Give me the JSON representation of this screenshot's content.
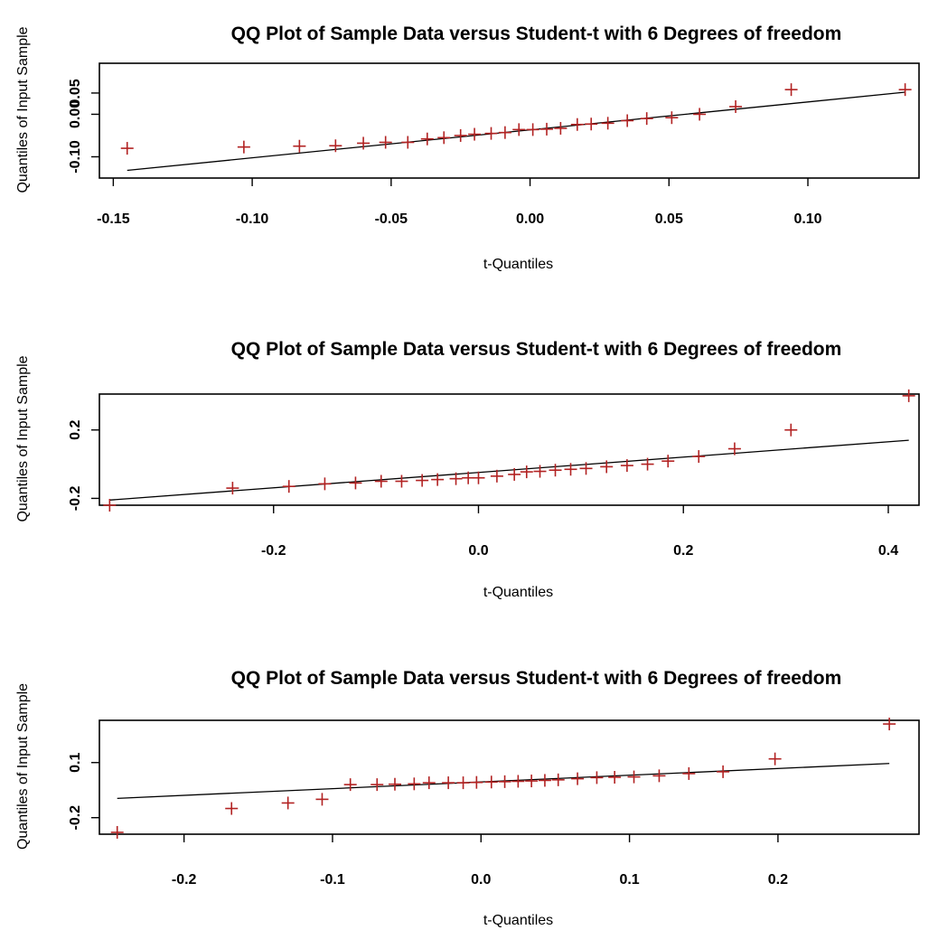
{
  "colors": {
    "marker": "#b22222",
    "highlight_marker": "#1f2a9a",
    "line": "#000000",
    "frame": "#000000"
  },
  "chart_data": [
    {
      "type": "scatter",
      "title": "QQ Plot of Sample Data versus Student-t with  6 Degrees of freedom",
      "xlabel": "t-Quantiles",
      "ylabel": "Quantiles of Input Sample",
      "xlim": [
        -0.155,
        0.14
      ],
      "ylim": [
        -0.15,
        0.12
      ],
      "xticks": [
        -0.15,
        -0.1,
        -0.05,
        0.0,
        0.05,
        0.1
      ],
      "xtick_labels": [
        "-0.15",
        "-0.10",
        "-0.05",
        "0.00",
        "0.05",
        "0.10"
      ],
      "yticks": [
        -0.1,
        0.0,
        0.05
      ],
      "ytick_labels": [
        "-0.10",
        "0.00",
        "0.05"
      ],
      "grid": false,
      "series": [
        {
          "marker": "+",
          "x": [
            -0.145,
            -0.103,
            -0.083,
            -0.07,
            -0.06,
            -0.052,
            -0.044,
            -0.037,
            -0.031,
            -0.025,
            -0.02,
            -0.014,
            -0.009,
            -0.004,
            0.001,
            0.006,
            0.011,
            0.017,
            0.022,
            0.028,
            0.035,
            0.042,
            0.051,
            0.061,
            0.074,
            0.094,
            0.135
          ],
          "y": [
            -0.08,
            -0.077,
            -0.075,
            -0.074,
            -0.068,
            -0.066,
            -0.066,
            -0.058,
            -0.055,
            -0.05,
            -0.047,
            -0.045,
            -0.043,
            -0.036,
            -0.036,
            -0.035,
            -0.033,
            -0.024,
            -0.023,
            -0.021,
            -0.015,
            -0.01,
            -0.008,
            0.0,
            0.018,
            0.058,
            0.058
          ]
        }
      ],
      "reference_line": {
        "x": [
          -0.145,
          0.135
        ],
        "y": [
          -0.132,
          0.052
        ]
      }
    },
    {
      "type": "scatter",
      "title": "QQ Plot of Sample Data versus Student-t with  6 Degrees of freedom",
      "xlabel": "t-Quantiles",
      "ylabel": "Quantiles of Input Sample",
      "xlim": [
        -0.37,
        0.43
      ],
      "ylim": [
        -0.24,
        0.41
      ],
      "xticks": [
        -0.2,
        0.0,
        0.2,
        0.4
      ],
      "xtick_labels": [
        "-0.2",
        "0.0",
        "0.2",
        "0.4"
      ],
      "yticks": [
        -0.2,
        0.2
      ],
      "ytick_labels": [
        "-0.2",
        "0.2"
      ],
      "grid": false,
      "series": [
        {
          "marker": "+",
          "x": [
            -0.36,
            -0.24,
            -0.185,
            -0.15,
            -0.12,
            -0.095,
            -0.075,
            -0.055,
            -0.04,
            -0.022,
            -0.01,
            0.0,
            0.018,
            0.035,
            0.047,
            0.06,
            0.075,
            0.09,
            0.105,
            0.125,
            0.145,
            0.165,
            0.185,
            0.215,
            0.25,
            0.305,
            0.42
          ],
          "y": [
            -0.24,
            -0.14,
            -0.13,
            -0.115,
            -0.11,
            -0.1,
            -0.1,
            -0.095,
            -0.09,
            -0.085,
            -0.08,
            -0.08,
            -0.07,
            -0.06,
            -0.045,
            -0.042,
            -0.035,
            -0.03,
            -0.025,
            -0.015,
            -0.008,
            0.0,
            0.018,
            0.045,
            0.09,
            0.2,
            0.4
          ]
        }
      ],
      "reference_line": {
        "x": [
          -0.36,
          0.42
        ],
        "y": [
          -0.21,
          0.14
        ]
      }
    },
    {
      "type": "scatter",
      "title": "QQ Plot of Sample Data versus Student-t with  6 Degrees of freedom",
      "xlabel": "t-Quantiles",
      "ylabel": "Quantiles of Input Sample",
      "xlim": [
        -0.257,
        0.295
      ],
      "ylim": [
        -0.29,
        0.33
      ],
      "xticks": [
        -0.2,
        -0.1,
        0.0,
        0.1,
        0.2
      ],
      "xtick_labels": [
        "-0.2",
        "-0.1",
        "0.0",
        "0.1",
        "0.2"
      ],
      "yticks": [
        -0.2,
        0.1
      ],
      "ytick_labels": [
        "-0.2",
        "0.1"
      ],
      "grid": false,
      "series": [
        {
          "marker": "+",
          "x": [
            -0.245,
            -0.168,
            -0.13,
            -0.107,
            -0.088,
            -0.07,
            -0.058,
            -0.045,
            -0.035,
            -0.022,
            -0.012,
            -0.003,
            0.007,
            0.016,
            0.025,
            0.034,
            0.043,
            0.052,
            0.065,
            0.078,
            0.09,
            0.103,
            0.12,
            0.14,
            0.163,
            0.198,
            0.275
          ],
          "y": [
            -0.28,
            -0.15,
            -0.12,
            -0.1,
            -0.02,
            -0.02,
            -0.018,
            -0.016,
            -0.01,
            -0.01,
            -0.01,
            -0.008,
            -0.006,
            -0.004,
            -0.002,
            0.0,
            0.003,
            0.006,
            0.012,
            0.018,
            0.02,
            0.022,
            0.028,
            0.04,
            0.05,
            0.12,
            0.31
          ]
        }
      ],
      "reference_line": {
        "x": [
          -0.245,
          0.275
        ],
        "y": [
          -0.095,
          0.095
        ]
      }
    }
  ]
}
